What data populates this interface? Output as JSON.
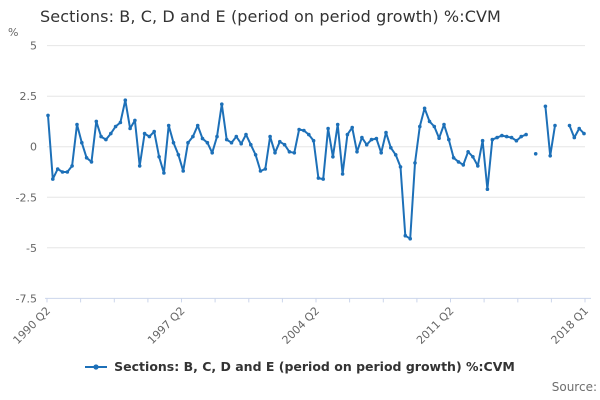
{
  "title": "Sections: B, C, D and E (period on period growth) %:CVM",
  "y_axis_unit_label": "%",
  "legend": {
    "label": "Sections: B, C, D and E (period on period growth) %:CVM"
  },
  "source_label": "Source:",
  "colors": {
    "series": "#1d70b8",
    "axis_line": "#ccd6eb",
    "gridline": "#e6e6e6",
    "axis_text": "#666666",
    "title_text": "#333333"
  },
  "chart_data": {
    "type": "line",
    "series_name": "Sections: B, C, D and E (period on period growth) %:CVM",
    "x_start_label": "1990 Q2",
    "x_end_label": "2018 Q1",
    "x_tick_count": 17,
    "x_labeled_ticks": [
      {
        "tick_index": 0,
        "label": "1990 Q2"
      },
      {
        "tick_index": 4,
        "label": "1997 Q2"
      },
      {
        "tick_index": 8,
        "label": "2004 Q2"
      },
      {
        "tick_index": 12,
        "label": "2011 Q2"
      },
      {
        "tick_index": 16,
        "label": "2018 Q1"
      }
    ],
    "y_ticks": [
      5,
      2.5,
      0,
      -2.5,
      -5,
      -7.5
    ],
    "ylim": [
      -7.5,
      5
    ],
    "ylabel": "%",
    "grid": true,
    "legend_position": "bottom-center",
    "marker": "dot",
    "values": [
      1.55,
      -1.6,
      -1.1,
      -1.25,
      -1.25,
      -0.95,
      1.1,
      0.2,
      -0.55,
      -0.75,
      1.25,
      0.5,
      0.35,
      0.65,
      1.0,
      1.2,
      2.3,
      0.9,
      1.3,
      -0.95,
      0.65,
      0.5,
      0.75,
      -0.5,
      -1.3,
      1.05,
      0.2,
      -0.4,
      -1.2,
      0.2,
      0.5,
      1.05,
      0.4,
      0.2,
      -0.3,
      0.5,
      2.1,
      0.35,
      0.2,
      0.5,
      0.15,
      0.6,
      0.1,
      -0.4,
      -1.2,
      -1.1,
      0.5,
      -0.3,
      0.25,
      0.1,
      -0.25,
      -0.3,
      0.85,
      0.8,
      0.6,
      0.3,
      -1.55,
      -1.6,
      0.9,
      -0.5,
      1.1,
      -1.35,
      0.6,
      0.95,
      -0.25,
      0.45,
      0.1,
      0.35,
      0.4,
      -0.3,
      0.7,
      -0.05,
      -0.4,
      -1.0,
      -4.4,
      -4.55,
      -0.8,
      1.0,
      1.9,
      1.25,
      1.0,
      0.42,
      1.1,
      0.35,
      -0.55,
      -0.75,
      -0.9,
      -0.25,
      -0.5,
      -0.95,
      0.3,
      -2.1,
      0.35,
      0.45,
      0.55,
      0.5,
      0.45,
      0.3,
      0.5,
      0.6,
      null,
      -0.35,
      null,
      2.0,
      -0.45,
      1.05,
      null,
      null,
      1.05,
      0.45,
      0.9,
      0.65
    ]
  }
}
